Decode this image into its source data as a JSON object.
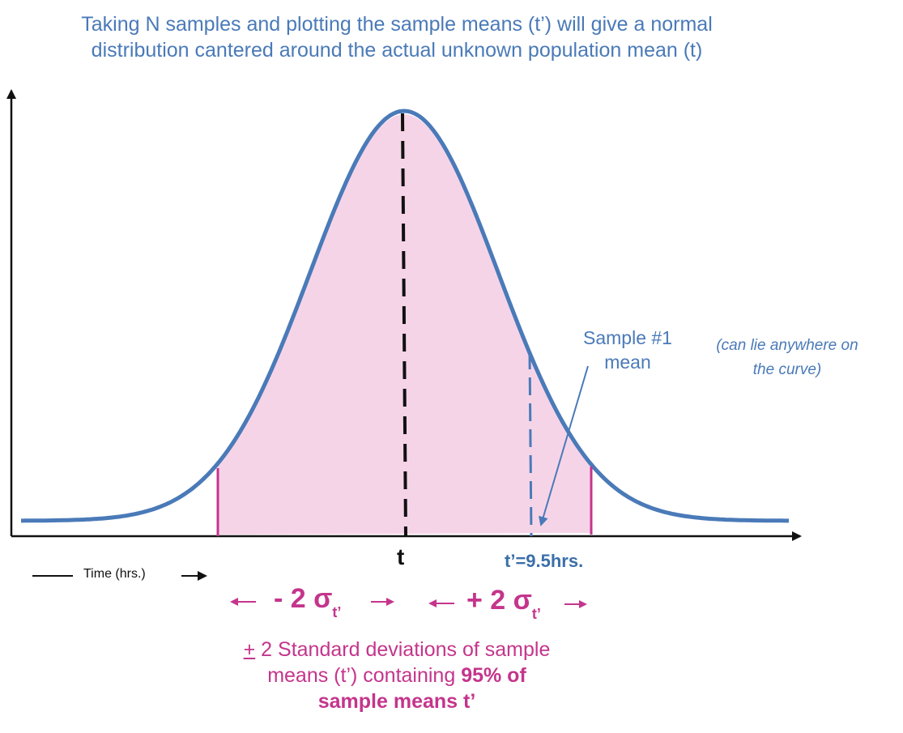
{
  "title_line1": "Taking N samples and plotting the sample means (t’) will give a normal",
  "title_line2": "distribution cantered around the actual unknown population mean (t)",
  "sample_label_line1": "Sample #1",
  "sample_label_line2": "mean",
  "aside_line1": "(can lie anywhere on",
  "aside_line2": "the curve)",
  "center_label": "t",
  "sample_value_label": "t’=9.5hrs.",
  "x_axis_label": "Time (hrs.)",
  "minus_sigma": {
    "prefix": "- 2 σ",
    "sub": "t’"
  },
  "plus_sigma": {
    "prefix": "+ 2 σ",
    "sub": "t’"
  },
  "footer": {
    "pm": "+",
    "line1_rest": " 2 Standard deviations of sample",
    "line2_plain": "means (t’) containing ",
    "line2_bold": "95% of",
    "line3_bold": "sample means t’"
  },
  "colors": {
    "curve": "#4a7ab8",
    "fill": "#f6d4e8",
    "accent": "#c4358c",
    "mean_line": "#111111",
    "sample_line": "#4a7ab8"
  },
  "icons": [
    "arrow-left-icon",
    "arrow-right-icon"
  ]
}
